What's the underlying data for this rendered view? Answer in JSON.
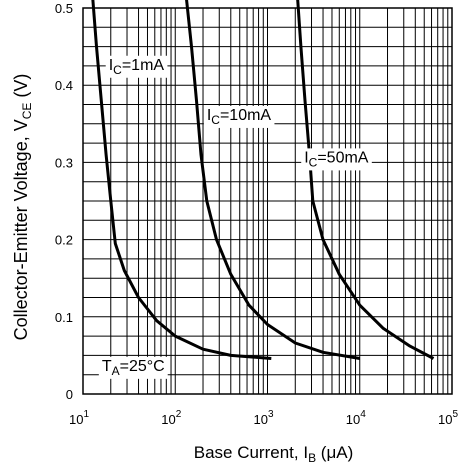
{
  "chart_data": {
    "type": "line",
    "xlabel": {
      "text": "Base Current, I",
      "sub": "B",
      "unit": " (μA)"
    },
    "ylabel": {
      "text": "Collector-Emitter Voltage, V",
      "sub": "CE",
      "unit": " (V)"
    },
    "x_scale": "log",
    "xlim": [
      10,
      100000
    ],
    "ylim": [
      0,
      0.5
    ],
    "x_ticks": [
      {
        "base": "10",
        "exp": "1",
        "value": 10
      },
      {
        "base": "10",
        "exp": "2",
        "value": 100
      },
      {
        "base": "10",
        "exp": "3",
        "value": 1000
      },
      {
        "base": "10",
        "exp": "4",
        "value": 10000
      },
      {
        "base": "10",
        "exp": "5",
        "value": 100000
      }
    ],
    "y_ticks": [
      {
        "label": "0",
        "value": 0
      },
      {
        "label": "0.1",
        "value": 0.1
      },
      {
        "label": "0.2",
        "value": 0.2
      },
      {
        "label": "0.3",
        "value": 0.3
      },
      {
        "label": "0.4",
        "value": 0.4
      },
      {
        "label": "0.5",
        "value": 0.5
      }
    ],
    "grid": true,
    "series": [
      {
        "name": "IC=1mA",
        "label": {
          "pre": "I",
          "sub": "C",
          "post": "=1mA",
          "x": 19,
          "y": 0.42
        },
        "points": [
          [
            12.6,
            0.52
          ],
          [
            14,
            0.45
          ],
          [
            15.8,
            0.38
          ],
          [
            17.8,
            0.31
          ],
          [
            20,
            0.25
          ],
          [
            22.4,
            0.195
          ],
          [
            28,
            0.16
          ],
          [
            40,
            0.125
          ],
          [
            63,
            0.095
          ],
          [
            100,
            0.075
          ],
          [
            200,
            0.058
          ],
          [
            400,
            0.05
          ],
          [
            1100,
            0.046
          ]
        ]
      },
      {
        "name": "IC=10mA",
        "label": {
          "pre": "I",
          "sub": "C",
          "post": "=10mA",
          "x": 220,
          "y": 0.355
        },
        "points": [
          [
            130,
            0.52
          ],
          [
            150,
            0.45
          ],
          [
            170,
            0.38
          ],
          [
            190,
            0.31
          ],
          [
            220,
            0.25
          ],
          [
            280,
            0.2
          ],
          [
            400,
            0.155
          ],
          [
            630,
            0.115
          ],
          [
            1000,
            0.09
          ],
          [
            2000,
            0.066
          ],
          [
            4000,
            0.054
          ],
          [
            10000,
            0.046
          ]
        ]
      },
      {
        "name": "IC=50mA",
        "label": {
          "pre": "I",
          "sub": "C",
          "post": "=50mA",
          "x": 2500,
          "y": 0.3
        },
        "points": [
          [
            2100,
            0.52
          ],
          [
            2300,
            0.45
          ],
          [
            2550,
            0.38
          ],
          [
            2850,
            0.31
          ],
          [
            3100,
            0.25
          ],
          [
            4000,
            0.2
          ],
          [
            6000,
            0.155
          ],
          [
            10000,
            0.115
          ],
          [
            18000,
            0.085
          ],
          [
            35000,
            0.062
          ],
          [
            63000,
            0.046
          ]
        ]
      }
    ],
    "annotation": {
      "pre": "T",
      "sub": "A",
      "post": "=25°C",
      "x": 16,
      "y": 0.03
    }
  }
}
